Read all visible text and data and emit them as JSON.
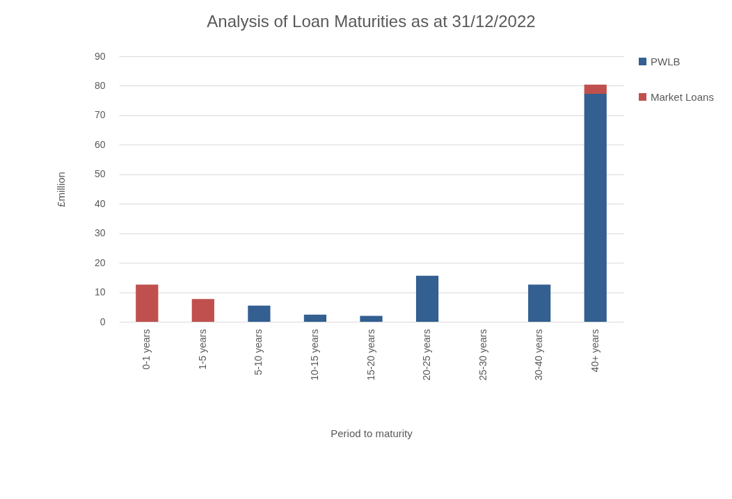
{
  "chart_data": {
    "type": "bar",
    "title": "Analysis of Loan Maturities as at 31/12/2022",
    "xlabel": "Period to maturity",
    "ylabel": "£million",
    "categories": [
      "0-1 years",
      "1-5 years",
      "5-10 years",
      "10-15 years",
      "15-20 years",
      "20-25 years",
      "25-30 years",
      "30-40 years",
      "40+ years"
    ],
    "series": [
      {
        "name": "PWLB",
        "color": "#335f91",
        "values": [
          0,
          0,
          5.5,
          2.4,
          2.0,
          15.6,
          0,
          12.6,
          77.3
        ]
      },
      {
        "name": "Market Loans",
        "color": "#c0504d",
        "values": [
          12.6,
          7.7,
          0,
          0,
          0,
          0,
          0,
          0,
          3.1
        ]
      }
    ],
    "stacked": true,
    "ylim": [
      0,
      90
    ],
    "yticks": [
      0,
      10,
      20,
      30,
      40,
      50,
      60,
      70,
      80,
      90
    ],
    "grid": "y",
    "legend": "right"
  }
}
